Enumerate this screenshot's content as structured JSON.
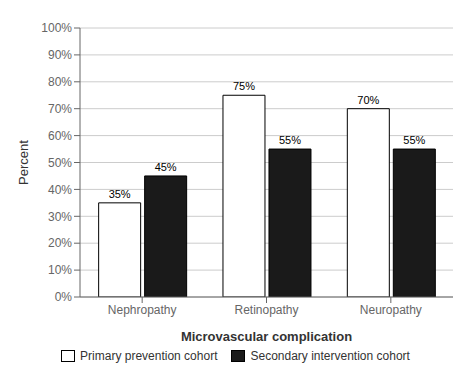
{
  "chart_data": {
    "type": "bar",
    "categories": [
      "Nephropathy",
      "Retinopathy",
      "Neuropathy"
    ],
    "series": [
      {
        "name": "Primary prevention cohort",
        "color": "#ffffff",
        "values": [
          35,
          75,
          70
        ],
        "value_labels": [
          "35%",
          "75%",
          "70%"
        ]
      },
      {
        "name": "Secondary intervention cohort",
        "color": "#1a1a1a",
        "values": [
          45,
          55,
          55
        ],
        "value_labels": [
          "45%",
          "55%",
          "55%"
        ]
      }
    ],
    "xlabel": "Microvascular complication",
    "ylabel": "Percent",
    "ylim": [
      0,
      100
    ],
    "yticks": [
      {
        "value": 0,
        "label": "0%"
      },
      {
        "value": 10,
        "label": "10%"
      },
      {
        "value": 20,
        "label": "20%"
      },
      {
        "value": 30,
        "label": "30%"
      },
      {
        "value": 40,
        "label": "40%"
      },
      {
        "value": 50,
        "label": "50%"
      },
      {
        "value": 60,
        "label": "60%"
      },
      {
        "value": 70,
        "label": "70%"
      },
      {
        "value": 80,
        "label": "80%"
      },
      {
        "value": 90,
        "label": "90%"
      },
      {
        "value": 100,
        "label": "100%"
      }
    ],
    "grid": true,
    "legend": "bottom",
    "data_labels": true
  }
}
